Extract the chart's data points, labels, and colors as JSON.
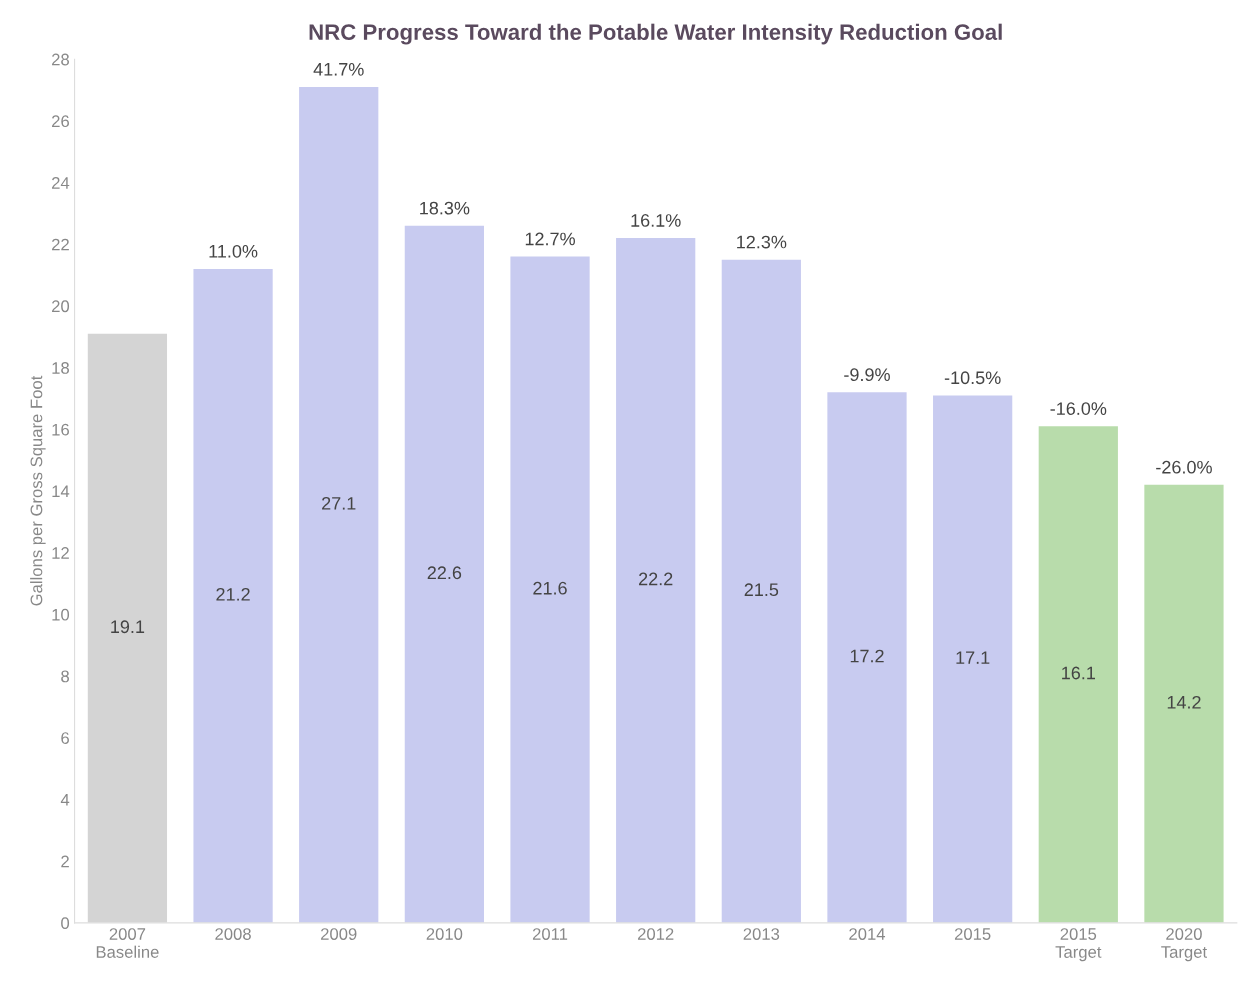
{
  "chart_data": {
    "type": "bar",
    "title": "NRC Progress Toward the Potable Water Intensity Reduction Goal",
    "ylabel": "Gallons per Gross Square Foot",
    "categories": [
      "2007\nBaseline",
      "2008",
      "2009",
      "2010",
      "2011",
      "2012",
      "2013",
      "2014",
      "2015",
      "2015\nTarget",
      "2020\nTarget"
    ],
    "values": [
      19.1,
      21.2,
      27.1,
      22.6,
      21.6,
      22.2,
      21.5,
      17.2,
      17.1,
      16.1,
      14.2
    ],
    "colors": [
      "#d4d4d4",
      "#c8cbf0",
      "#c8cbf0",
      "#c8cbf0",
      "#c8cbf0",
      "#c8cbf0",
      "#c8cbf0",
      "#c8cbf0",
      "#c8cbf0",
      "#b8dcab",
      "#b8dcab"
    ],
    "data_labels": true,
    "annotations": [
      {
        "text": "11.0%",
        "x": "2008",
        "y": 21.2
      },
      {
        "text": "41.7%",
        "x": "2009",
        "y": 27.1
      },
      {
        "text": "18.3%",
        "x": "2010",
        "y": 22.6
      },
      {
        "text": "12.7%",
        "x": "2011",
        "y": 21.6
      },
      {
        "text": "16.1%",
        "x": "2012",
        "y": 22.2
      },
      {
        "text": "12.3%",
        "x": "2013",
        "y": 21.5
      },
      {
        "text": "-9.9%",
        "x": "2014",
        "y": 17.2
      },
      {
        "text": "-10.5%",
        "x": "2015",
        "y": 17.1
      },
      {
        "text": "-16.0%",
        "x": "2015\nTarget",
        "y": 16.1
      },
      {
        "text": "-26.0%",
        "x": "2020\nTarget",
        "y": 14.2
      }
    ],
    "ylim": [
      0,
      28
    ],
    "yticks": [
      0,
      2,
      4,
      6,
      8,
      10,
      12,
      14,
      16,
      18,
      20,
      22,
      24,
      26,
      28
    ],
    "grid": false
  }
}
